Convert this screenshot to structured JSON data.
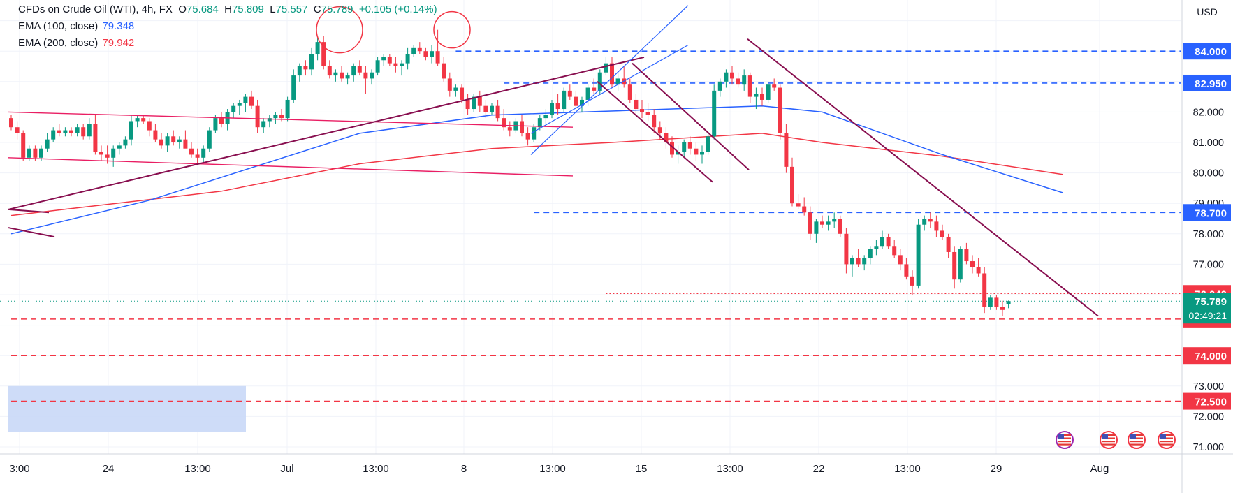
{
  "legend": {
    "symbol": "CFDs on Crude Oil (WTI), 4h, FX",
    "o_label": "O",
    "o": "75.684",
    "h_label": "H",
    "h": "75.809",
    "l_label": "L",
    "l": "75.557",
    "c_label": "C",
    "c": "75.789",
    "change": "+0.105 (+0.14%)",
    "ema100_label": "EMA (100, close)",
    "ema100_value": "79.348",
    "ema200_label": "EMA (200, close)",
    "ema200_value": "79.942"
  },
  "currency": "USD",
  "countdown": "02:49:21",
  "colors": {
    "up": "#089981",
    "down": "#f23645",
    "ema100": "#2962ff",
    "ema200": "#f23645",
    "trend": "#880e4f",
    "pink": "#e91e63",
    "channel": "#2962ff",
    "level_blue": "#2962ff",
    "level_red": "#f23645",
    "zone": "#c9d8f7"
  },
  "chart_data": {
    "type": "candlestick",
    "title": "CFDs on Crude Oil (WTI), 4h, FX",
    "ylim": [
      70.85,
      86.0
    ],
    "y_ticks": [
      "71.000",
      "72.000",
      "73.000",
      "77.000",
      "78.000",
      "79.000",
      "80.000",
      "81.000",
      "82.000"
    ],
    "x_ticks": [
      "3:00",
      "24",
      "13:00",
      "Jul",
      "13:00",
      "8",
      "13:00",
      "15",
      "13:00",
      "22",
      "13:00",
      "29",
      "Aug"
    ],
    "last_price": 75.789,
    "price_labels": [
      {
        "value": "84.000",
        "kind": "blue"
      },
      {
        "value": "82.950",
        "kind": "blue"
      },
      {
        "value": "78.700",
        "kind": "blue"
      },
      {
        "value": "76.040",
        "kind": "red"
      },
      {
        "value": "75.200",
        "kind": "red"
      },
      {
        "value": "74.000",
        "kind": "red"
      },
      {
        "value": "72.500",
        "kind": "red"
      }
    ],
    "horizontal_levels": [
      {
        "price": 84.0,
        "color": "blue",
        "from_bar": 74
      },
      {
        "price": 82.95,
        "color": "blue",
        "from_bar": 82
      },
      {
        "price": 78.7,
        "color": "blue",
        "from_bar": 87
      },
      {
        "price": 76.04,
        "color": "red_dotted",
        "from_bar": 99
      },
      {
        "price": 75.2,
        "color": "red",
        "from_bar": 0
      },
      {
        "price": 74.0,
        "color": "red",
        "from_bar": 0
      },
      {
        "price": 72.5,
        "color": "red",
        "from_bar": 0
      }
    ],
    "ohlc": [
      [
        81.8,
        81.9,
        81.4,
        81.5
      ],
      [
        81.5,
        81.7,
        81.1,
        81.3
      ],
      [
        81.3,
        81.4,
        80.4,
        80.5
      ],
      [
        80.5,
        80.9,
        80.4,
        80.8
      ],
      [
        80.8,
        80.9,
        80.4,
        80.5
      ],
      [
        80.5,
        80.9,
        80.4,
        80.8
      ],
      [
        80.8,
        81.3,
        80.7,
        81.1
      ],
      [
        81.1,
        81.5,
        81.0,
        81.4
      ],
      [
        81.4,
        81.6,
        81.2,
        81.3
      ],
      [
        81.3,
        81.5,
        81.2,
        81.4
      ],
      [
        81.4,
        81.5,
        81.2,
        81.3
      ],
      [
        81.3,
        81.6,
        81.2,
        81.5
      ],
      [
        81.5,
        81.6,
        81.1,
        81.2
      ],
      [
        81.2,
        81.8,
        81.1,
        81.6
      ],
      [
        81.6,
        81.9,
        80.6,
        80.7
      ],
      [
        80.7,
        80.9,
        80.4,
        80.6
      ],
      [
        80.6,
        80.9,
        80.3,
        80.5
      ],
      [
        80.5,
        80.9,
        80.2,
        80.8
      ],
      [
        80.8,
        81.0,
        80.6,
        80.9
      ],
      [
        80.9,
        81.2,
        80.8,
        81.1
      ],
      [
        81.1,
        81.9,
        80.9,
        81.7
      ],
      [
        81.7,
        81.9,
        81.5,
        81.8
      ],
      [
        81.8,
        81.9,
        81.6,
        81.7
      ],
      [
        81.7,
        81.8,
        81.2,
        81.4
      ],
      [
        81.4,
        81.6,
        81.0,
        81.1
      ],
      [
        81.1,
        81.3,
        80.8,
        80.9
      ],
      [
        80.9,
        81.3,
        80.7,
        81.2
      ],
      [
        81.2,
        81.4,
        80.9,
        81.0
      ],
      [
        81.0,
        81.2,
        80.8,
        81.1
      ],
      [
        81.1,
        81.4,
        80.9,
        80.8
      ],
      [
        80.8,
        81.0,
        80.5,
        80.6
      ],
      [
        80.6,
        80.8,
        80.3,
        80.5
      ],
      [
        80.5,
        80.9,
        80.3,
        80.8
      ],
      [
        80.8,
        81.5,
        80.7,
        81.4
      ],
      [
        81.4,
        81.9,
        81.3,
        81.8
      ],
      [
        81.8,
        82.0,
        81.5,
        81.6
      ],
      [
        81.6,
        82.1,
        81.4,
        82.0
      ],
      [
        82.0,
        82.3,
        81.8,
        82.2
      ],
      [
        82.2,
        82.4,
        81.9,
        82.3
      ],
      [
        82.3,
        82.6,
        82.0,
        82.5
      ],
      [
        82.5,
        82.7,
        82.1,
        82.2
      ],
      [
        82.2,
        82.4,
        81.3,
        81.5
      ],
      [
        81.5,
        81.8,
        81.3,
        81.7
      ],
      [
        81.7,
        81.9,
        81.5,
        81.8
      ],
      [
        81.8,
        82.0,
        81.6,
        81.9
      ],
      [
        81.9,
        82.1,
        81.7,
        81.8
      ],
      [
        81.8,
        82.5,
        81.7,
        82.4
      ],
      [
        82.4,
        83.4,
        82.3,
        83.2
      ],
      [
        83.2,
        83.6,
        83.0,
        83.5
      ],
      [
        83.5,
        83.7,
        83.2,
        83.4
      ],
      [
        83.4,
        84.1,
        83.2,
        83.9
      ],
      [
        83.9,
        84.5,
        83.7,
        84.3
      ],
      [
        84.3,
        84.5,
        83.4,
        83.5
      ],
      [
        83.5,
        83.7,
        83.1,
        83.2
      ],
      [
        83.2,
        83.4,
        83.0,
        83.3
      ],
      [
        83.3,
        83.5,
        83.0,
        83.1
      ],
      [
        83.1,
        83.3,
        82.9,
        83.2
      ],
      [
        83.2,
        83.6,
        83.0,
        83.5
      ],
      [
        83.5,
        83.7,
        83.2,
        83.3
      ],
      [
        83.3,
        83.5,
        82.6,
        83.1
      ],
      [
        83.1,
        83.4,
        82.9,
        83.3
      ],
      [
        83.3,
        83.8,
        83.2,
        83.7
      ],
      [
        83.7,
        83.9,
        83.5,
        83.8
      ],
      [
        83.8,
        83.9,
        83.5,
        83.6
      ],
      [
        83.6,
        83.8,
        83.3,
        83.5
      ],
      [
        83.5,
        83.7,
        83.2,
        83.6
      ],
      [
        83.6,
        84.1,
        83.4,
        83.9
      ],
      [
        83.9,
        84.2,
        83.8,
        84.1
      ],
      [
        84.1,
        84.3,
        83.9,
        84.0
      ],
      [
        84.0,
        84.1,
        83.7,
        83.8
      ],
      [
        83.8,
        84.2,
        83.6,
        84.0
      ],
      [
        84.0,
        84.7,
        83.5,
        83.6
      ],
      [
        83.6,
        83.8,
        83.0,
        83.1
      ],
      [
        83.1,
        83.3,
        82.5,
        82.7
      ],
      [
        82.7,
        82.9,
        82.5,
        82.8
      ],
      [
        82.8,
        82.9,
        82.3,
        82.4
      ],
      [
        82.4,
        82.6,
        81.9,
        82.1
      ],
      [
        82.1,
        82.6,
        82.0,
        82.5
      ],
      [
        82.5,
        82.7,
        82.0,
        82.2
      ],
      [
        82.2,
        82.4,
        81.8,
        82.0
      ],
      [
        82.0,
        82.3,
        81.9,
        82.2
      ],
      [
        82.2,
        82.4,
        81.7,
        81.8
      ],
      [
        81.8,
        82.1,
        81.4,
        81.5
      ],
      [
        81.5,
        81.7,
        81.2,
        81.4
      ],
      [
        81.4,
        81.8,
        81.3,
        81.7
      ],
      [
        81.7,
        81.9,
        81.2,
        81.3
      ],
      [
        81.3,
        81.5,
        80.9,
        81.1
      ],
      [
        81.1,
        81.6,
        81.0,
        81.5
      ],
      [
        81.5,
        81.9,
        81.4,
        81.8
      ],
      [
        81.8,
        82.1,
        81.6,
        81.9
      ],
      [
        81.9,
        82.4,
        81.8,
        82.3
      ],
      [
        82.3,
        82.6,
        81.9,
        82.1
      ],
      [
        82.1,
        82.8,
        82.0,
        82.7
      ],
      [
        82.7,
        82.9,
        82.4,
        82.5
      ],
      [
        82.5,
        82.7,
        82.1,
        82.2
      ],
      [
        82.2,
        82.5,
        82.0,
        82.4
      ],
      [
        82.4,
        82.9,
        82.2,
        82.8
      ],
      [
        82.8,
        83.1,
        82.6,
        82.7
      ],
      [
        82.7,
        83.4,
        82.6,
        83.3
      ],
      [
        83.3,
        83.8,
        83.2,
        83.6
      ],
      [
        83.6,
        83.8,
        82.8,
        82.9
      ],
      [
        82.9,
        83.3,
        82.7,
        83.1
      ],
      [
        83.1,
        83.5,
        82.8,
        82.9
      ],
      [
        82.9,
        83.1,
        82.3,
        82.4
      ],
      [
        82.4,
        82.6,
        81.9,
        82.1
      ],
      [
        82.1,
        82.4,
        81.8,
        82.0
      ],
      [
        82.0,
        82.3,
        81.7,
        81.9
      ],
      [
        81.9,
        82.1,
        81.3,
        81.5
      ],
      [
        81.5,
        81.7,
        81.1,
        81.3
      ],
      [
        81.3,
        81.5,
        80.8,
        81.0
      ],
      [
        81.0,
        81.2,
        80.5,
        80.6
      ],
      [
        80.6,
        80.9,
        80.3,
        80.7
      ],
      [
        80.7,
        81.1,
        80.5,
        81.0
      ],
      [
        81.0,
        81.2,
        80.6,
        80.8
      ],
      [
        80.8,
        81.0,
        80.4,
        80.6
      ],
      [
        80.6,
        80.9,
        80.3,
        80.7
      ],
      [
        80.7,
        81.3,
        80.6,
        81.2
      ],
      [
        81.2,
        82.9,
        81.1,
        82.7
      ],
      [
        82.7,
        83.1,
        82.5,
        83.0
      ],
      [
        83.0,
        83.4,
        82.8,
        83.3
      ],
      [
        83.3,
        83.5,
        82.9,
        83.1
      ],
      [
        83.1,
        83.3,
        82.8,
        82.9
      ],
      [
        82.9,
        83.4,
        82.7,
        83.2
      ],
      [
        83.2,
        83.3,
        82.3,
        82.5
      ],
      [
        82.5,
        82.8,
        82.1,
        82.6
      ],
      [
        82.6,
        82.8,
        82.2,
        82.4
      ],
      [
        82.4,
        83.0,
        82.3,
        82.9
      ],
      [
        82.9,
        83.1,
        82.7,
        82.8
      ],
      [
        82.8,
        82.9,
        81.1,
        81.3
      ],
      [
        81.3,
        81.6,
        80.0,
        80.2
      ],
      [
        80.2,
        80.5,
        78.9,
        79.0
      ],
      [
        79.0,
        79.3,
        78.8,
        78.9
      ],
      [
        78.9,
        79.2,
        78.6,
        78.7
      ],
      [
        78.7,
        78.9,
        77.8,
        78.0
      ],
      [
        78.0,
        78.5,
        77.7,
        78.4
      ],
      [
        78.4,
        78.6,
        78.2,
        78.3
      ],
      [
        78.3,
        78.6,
        78.1,
        78.4
      ],
      [
        78.4,
        78.7,
        78.2,
        78.5
      ],
      [
        78.5,
        78.6,
        77.9,
        78.0
      ],
      [
        78.0,
        78.2,
        76.7,
        77.0
      ],
      [
        77.0,
        77.3,
        76.6,
        77.2
      ],
      [
        77.2,
        77.5,
        76.9,
        77.0
      ],
      [
        77.0,
        77.3,
        76.8,
        77.2
      ],
      [
        77.2,
        77.6,
        77.0,
        77.5
      ],
      [
        77.5,
        77.8,
        77.3,
        77.6
      ],
      [
        77.6,
        78.1,
        77.5,
        77.9
      ],
      [
        77.9,
        78.0,
        77.5,
        77.6
      ],
      [
        77.6,
        77.8,
        77.2,
        77.3
      ],
      [
        77.3,
        77.5,
        76.8,
        77.0
      ],
      [
        77.0,
        77.2,
        76.5,
        76.6
      ],
      [
        76.6,
        76.8,
        76.0,
        76.3
      ],
      [
        76.3,
        78.5,
        76.2,
        78.3
      ],
      [
        78.3,
        78.6,
        78.1,
        78.5
      ],
      [
        78.5,
        78.7,
        78.2,
        78.4
      ],
      [
        78.4,
        78.6,
        77.9,
        78.1
      ],
      [
        78.1,
        78.3,
        77.8,
        77.9
      ],
      [
        77.9,
        78.0,
        77.2,
        77.4
      ],
      [
        77.4,
        77.6,
        76.2,
        76.5
      ],
      [
        76.5,
        77.6,
        76.4,
        77.5
      ],
      [
        77.5,
        77.7,
        77.0,
        77.1
      ],
      [
        77.1,
        77.3,
        76.7,
        76.9
      ],
      [
        76.9,
        77.2,
        76.6,
        76.7
      ],
      [
        76.7,
        76.9,
        75.4,
        75.6
      ],
      [
        75.6,
        76.0,
        75.5,
        75.9
      ],
      [
        75.9,
        76.0,
        75.5,
        75.6
      ],
      [
        75.6,
        75.8,
        75.3,
        75.5
      ],
      [
        75.684,
        75.809,
        75.557,
        75.789
      ]
    ],
    "ema100": [
      [
        0,
        78.0
      ],
      [
        23,
        79.1
      ],
      [
        58,
        81.3
      ],
      [
        80,
        81.9
      ],
      [
        95,
        82.0
      ],
      [
        110,
        82.1
      ],
      [
        125,
        82.2
      ],
      [
        135,
        82.0
      ],
      [
        155,
        80.6
      ],
      [
        175,
        79.35
      ]
    ],
    "ema200": [
      [
        0,
        78.6
      ],
      [
        35,
        79.4
      ],
      [
        58,
        80.3
      ],
      [
        80,
        80.8
      ],
      [
        100,
        81.0
      ],
      [
        125,
        81.3
      ],
      [
        135,
        81.0
      ],
      [
        155,
        80.55
      ],
      [
        175,
        79.95
      ]
    ]
  }
}
